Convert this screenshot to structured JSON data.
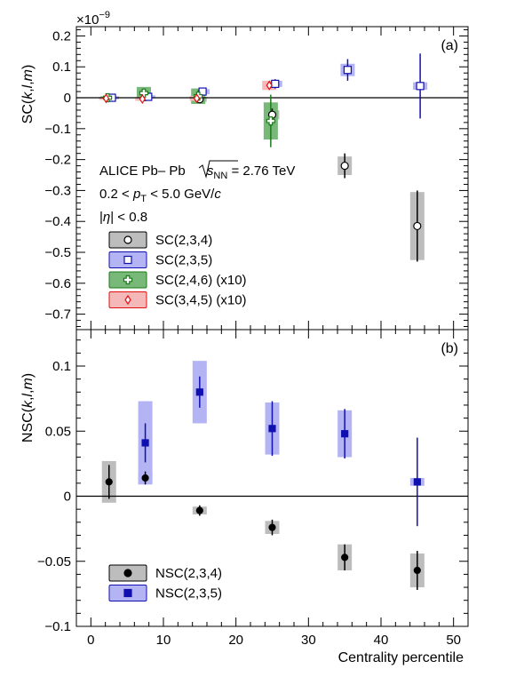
{
  "chart_data": [
    {
      "type": "scatter",
      "panel_label": "(a)",
      "ylabel": "SC(k,l,m)",
      "ylabel_parts": [
        "SC(",
        "k",
        ",",
        "l",
        ",",
        "m",
        ")"
      ],
      "scale_label": "×10",
      "scale_exponent": "−9",
      "ylim": [
        -0.75,
        0.23
      ],
      "yticks": [
        0.2,
        0.1,
        0,
        -0.1,
        -0.2,
        -0.3,
        -0.4,
        -0.5,
        -0.6,
        -0.7
      ],
      "ytick_labels": [
        "0.2",
        "0.1",
        "0",
        "−0.1",
        "−0.2",
        "−0.3",
        "−0.4",
        "−0.5",
        "−0.6",
        "−0.7"
      ],
      "xlim": [
        -2,
        52
      ],
      "annotations": {
        "line1_a": "ALICE Pb",
        "line1_b": "Pb",
        "line1_sqrt": "s",
        "line1_sub": "NN",
        "line1_c": " = 2.76 TeV",
        "line2_a": "0.2 < ",
        "line2_p": "p",
        "line2_sub": "T",
        "line2_b": " < 5.0 GeV/",
        "line2_c": "c",
        "line3_a": "|",
        "line3_eta": "η",
        "line3_b": "| < 0.8"
      },
      "series": [
        {
          "name": "SC(2,3,4)",
          "marker": "open-circle",
          "color": "#000000",
          "fill": "#bdbdbd",
          "x": [
            2.5,
            7.5,
            15,
            25,
            35,
            45
          ],
          "y": [
            0.0,
            0.002,
            -0.005,
            -0.055,
            -0.22,
            -0.415
          ],
          "stat_err": [
            0.005,
            0.005,
            0.006,
            0.02,
            0.04,
            0.115
          ],
          "sys_err": [
            0.004,
            0.004,
            0.008,
            0.015,
            0.03,
            0.11
          ]
        },
        {
          "name": "SC(2,3,5)",
          "marker": "open-square",
          "color": "#1010b0",
          "fill": "#b4b4f4",
          "x": [
            2.5,
            7.5,
            15,
            25,
            35,
            45
          ],
          "y": [
            0.0,
            0.003,
            0.02,
            0.045,
            0.09,
            0.038
          ],
          "stat_err": [
            0.004,
            0.004,
            0.008,
            0.015,
            0.035,
            0.105
          ],
          "sys_err": [
            0.005,
            0.005,
            0.008,
            0.01,
            0.02,
            0.012
          ]
        },
        {
          "name": "SC(2,4,6) (x10)",
          "marker": "open-cross",
          "color": "#1a7a1a",
          "fill": "#78b878",
          "x": [
            2.5,
            7.5,
            15,
            25
          ],
          "y": [
            0.0,
            0.015,
            0.005,
            -0.075
          ],
          "stat_err": [
            0.004,
            0.015,
            0.02,
            0.085
          ],
          "sys_err": [
            0.005,
            0.02,
            0.025,
            0.06
          ]
        },
        {
          "name": "SC(3,4,5) (x10)",
          "marker": "open-diamond",
          "color": "#e01010",
          "fill": "#f4b8b8",
          "x": [
            2.5,
            7.5,
            15,
            25
          ],
          "y": [
            -0.002,
            -0.004,
            -0.002,
            0.04
          ],
          "stat_err": [
            0.003,
            0.003,
            0.004,
            0.012
          ],
          "sys_err": [
            0.005,
            0.006,
            0.008,
            0.015
          ]
        }
      ]
    },
    {
      "type": "scatter",
      "panel_label": "(b)",
      "ylabel": "NSC(k,l,m)",
      "ylabel_parts": [
        "NSC(",
        "k",
        ",",
        "l",
        ",",
        "m",
        ")"
      ],
      "xlabel": "Centrality percentile",
      "ylim": [
        -0.1,
        0.128
      ],
      "yticks": [
        0.1,
        0.05,
        0,
        -0.05,
        -0.1
      ],
      "ytick_labels": [
        "0.1",
        "0.05",
        "0",
        "−0.05",
        "−0.1"
      ],
      "xlim": [
        -2,
        52
      ],
      "xticks": [
        0,
        10,
        20,
        30,
        40,
        50
      ],
      "xtick_labels": [
        "0",
        "10",
        "20",
        "30",
        "40",
        "50"
      ],
      "series": [
        {
          "name": "NSC(2,3,4)",
          "marker": "filled-circle",
          "color": "#000000",
          "fill": "#bdbdbd",
          "x": [
            2.5,
            7.5,
            15,
            25,
            35,
            45
          ],
          "y": [
            0.011,
            0.014,
            -0.011,
            -0.024,
            -0.047,
            -0.057
          ],
          "stat_err": [
            0.013,
            0.005,
            0.004,
            0.006,
            0.01,
            0.015
          ],
          "sys_err": [
            0.016,
            0.004,
            0.003,
            0.005,
            0.01,
            0.013
          ]
        },
        {
          "name": "NSC(2,3,5)",
          "marker": "filled-square",
          "color": "#1010b0",
          "fill": "#b4b4f4",
          "x": [
            2.5,
            7.5,
            15,
            25,
            35,
            45
          ],
          "y": [
            null,
            0.041,
            0.08,
            0.052,
            0.048,
            0.011
          ],
          "stat_err": [
            null,
            0.015,
            0.012,
            0.021,
            0.019,
            0.034
          ],
          "sys_err": [
            null,
            0.032,
            0.024,
            0.02,
            0.018,
            0.003
          ]
        }
      ]
    }
  ]
}
